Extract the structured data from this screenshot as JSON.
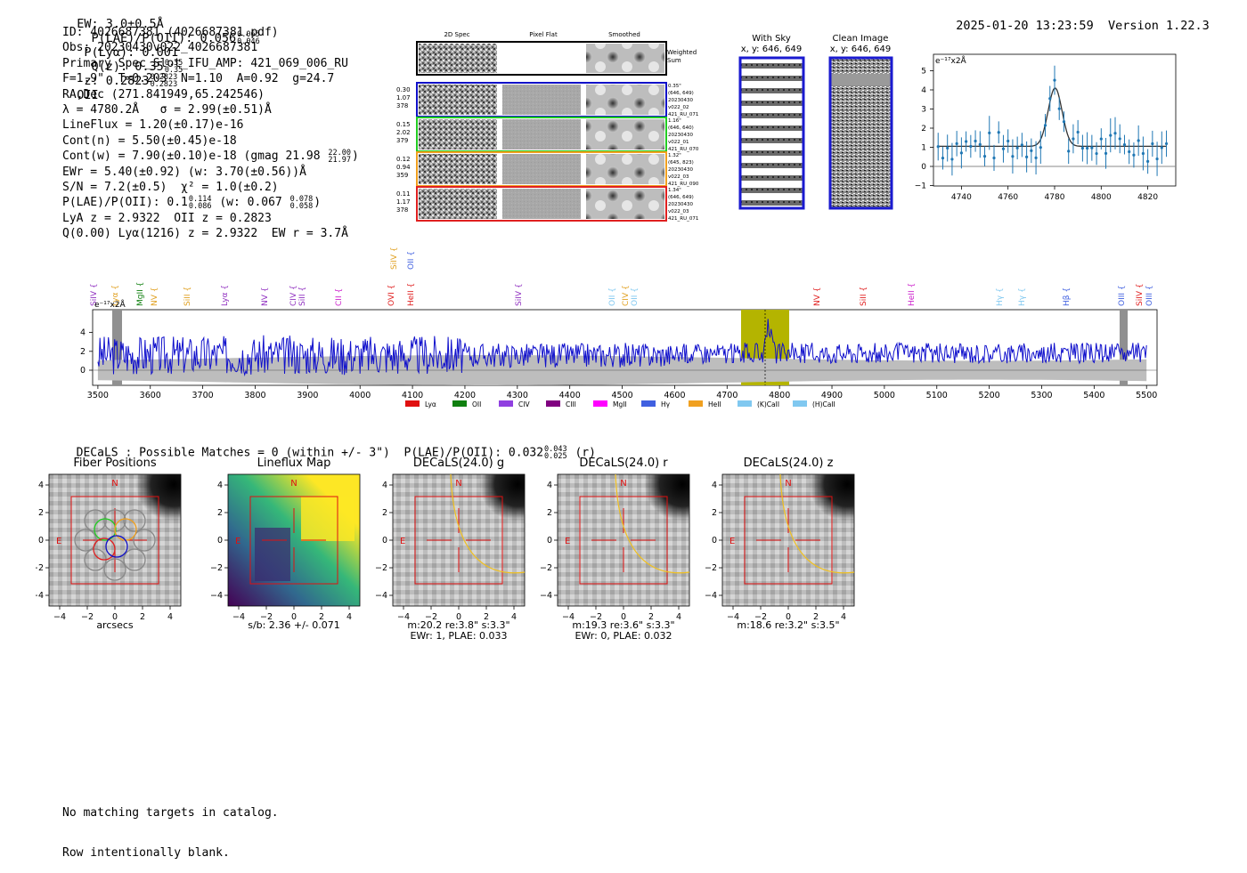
{
  "header": {
    "ew": "EW: 3.0±0.5Å",
    "plae_label": "P(LAE)/P(OII): 0.056",
    "plae_hi": "0.065",
    "plae_lo": "0.046",
    "plya": "P(Lyα): 0.001",
    "qz_label": "Q(z): 0.35",
    "qz_hi": "0.35",
    "qz_lo": "0.35",
    "z_label": "z: 0.2823",
    "z_hi": "0.2823",
    "z_lo": "0.2823",
    "z_line": "OII",
    "timestamp": "2025-01-20 13:23:59",
    "version": "Version 1.22.3"
  },
  "info": {
    "id": "ID: 4026687381 (4026687381.pdf)",
    "obs": "Obs: 20230430v022_4026687381",
    "primary": "Primary Spec_Slot_IFU_AMP: 421_069_006_RU",
    "fparams": "F=1.9\"  T=0.203  N=1.10  A=0.92  g=24.7",
    "radec": "RA,Dec (271.841949,65.242546)",
    "lambda": "λ = 4780.2Å   σ = 2.99(±0.51)Å",
    "lineflux": "LineFlux = 1.20(±0.17)e-16",
    "contn": "Cont(n) = 5.50(±0.45)e-18",
    "contw": "Cont(w) = 7.90(±0.10)e-18 (gmag 21.98",
    "gmag_hi": "22.00",
    "gmag_lo": "21.97",
    "ewr": "EWr = 5.40(±0.92) (w: 3.70(±0.56))Å",
    "sn": "S/N = 7.2(±0.5)  χ² = 1.0(±0.2)",
    "plae": "P(LAE)/P(OII): 0.1",
    "plae_hi": "0.114",
    "plae_lo": "0.086",
    "plae_w": "(w: 0.067",
    "plae_w_hi": "0.078",
    "plae_w_lo": "0.058",
    "lya_z": "LyA z = 2.9322  OII z = 0.2823",
    "q": "Q(0.00) Lyα(1216) z = 2.9322  EW r = 3.7Å"
  },
  "cutouts": {
    "col_2d": "2D Spec",
    "col_flat": "Pixel Flat",
    "col_smooth": "Smoothed",
    "weighted_sum": "Weighted\nSum",
    "rows": [
      {
        "left": [
          "0.30",
          "1.07",
          "378"
        ],
        "right": [
          "0.35\"",
          "(646, 649)",
          "20230430",
          "v022_02",
          "421_RU_071"
        ],
        "color": "#1010c8"
      },
      {
        "left": [
          "0.15",
          "2.02",
          "379"
        ],
        "right": [
          "1.16\"",
          "(646, 640)",
          "20230430",
          "v022_01",
          "421_RU_070"
        ],
        "color": "#22cc22"
      },
      {
        "left": [
          "0.12",
          "0.94",
          "359"
        ],
        "right": [
          "1.32\"",
          "(645, 823)",
          "20230430",
          "v022_03",
          "421_RU_090"
        ],
        "color": "#f0a020"
      },
      {
        "left": [
          "0.11",
          "1.17",
          "378"
        ],
        "right": [
          "1.34\"",
          "(646, 649)",
          "20230430",
          "v022_03",
          "421_RU_071"
        ],
        "color": "#e02020"
      }
    ]
  },
  "sky": {
    "with_sky_title": "With Sky",
    "with_sky_xy": "x, y: 646, 649",
    "clean_title": "Clean Image",
    "clean_xy": "x, y: 646, 649"
  },
  "zoom_plot": {
    "unit_label": "e⁻¹⁷x2Å",
    "x_ticks": [
      "4740",
      "4760",
      "4780",
      "4800",
      "4820"
    ],
    "y_ticks": [
      "5",
      "4",
      "3",
      "2",
      "1",
      "0",
      "−1"
    ]
  },
  "spectrum": {
    "unit_label": "e⁻¹⁷x2Å",
    "x_ticks": [
      "3500",
      "3600",
      "3700",
      "3800",
      "3900",
      "4000",
      "4100",
      "4200",
      "4300",
      "4400",
      "4500",
      "4600",
      "4700",
      "4800",
      "4900",
      "5000",
      "5100",
      "5200",
      "5300",
      "5400",
      "5500"
    ],
    "y_ticks": [
      "4",
      "2",
      "0"
    ],
    "line_labels": [
      {
        "t": "SiIV",
        "c": "#9030c0"
      },
      {
        "t": "Lyα",
        "c": "#e0a020"
      },
      {
        "t": "MgII",
        "c": "#108010"
      },
      {
        "t": "NV",
        "c": "#e0a020"
      },
      {
        "t": "SiII",
        "c": "#e0a020"
      },
      {
        "t": "Lyα",
        "c": "#9030c0"
      },
      {
        "t": "NV",
        "c": "#9030c0"
      },
      {
        "t": "CIV",
        "c": "#9030c0"
      },
      {
        "t": "SiII",
        "c": "#9030c0"
      },
      {
        "t": "CII",
        "c": "#cc20cc"
      },
      {
        "t": "OVI",
        "c": "#e02020"
      },
      {
        "t": "HeII",
        "c": "#e02020"
      },
      {
        "t": "SiIV",
        "c": "#e0a020"
      },
      {
        "t": "OII",
        "c": "#4060e0"
      },
      {
        "t": "SiIV",
        "c": "#9030c0"
      },
      {
        "t": "OII",
        "c": "#80c8f0"
      },
      {
        "t": "CIV",
        "c": "#e0a020"
      },
      {
        "t": "OII",
        "c": "#80c8f0"
      },
      {
        "t": "NV",
        "c": "#e02020"
      },
      {
        "t": "SiII",
        "c": "#e02020"
      },
      {
        "t": "HeII",
        "c": "#cc20cc"
      },
      {
        "t": "Hγ",
        "c": "#80c8f0"
      },
      {
        "t": "Hγ",
        "c": "#80c8f0"
      },
      {
        "t": "Hβ",
        "c": "#4060e0"
      },
      {
        "t": "OIII",
        "c": "#4060e0"
      },
      {
        "t": "SiIV",
        "c": "#e02020"
      },
      {
        "t": "OIII",
        "c": "#4060e0"
      }
    ],
    "legend": [
      {
        "t": "Lyα",
        "c": "#e01010"
      },
      {
        "t": "OII",
        "c": "#108010"
      },
      {
        "t": "CIV",
        "c": "#9040e0"
      },
      {
        "t": "CIII",
        "c": "#800080"
      },
      {
        "t": "MgII",
        "c": "#ff00ff"
      },
      {
        "t": "Hγ",
        "c": "#4060e0"
      },
      {
        "t": "HeII",
        "c": "#f0a020"
      },
      {
        "t": "(K)CaII",
        "c": "#80c8f0"
      },
      {
        "t": "(H)CaII",
        "c": "#80c8f0"
      }
    ]
  },
  "decals": {
    "summary": "DECaLS : Possible Matches = 0 (within +/- 3\")  P(LAE)/P(OII): 0.032",
    "summary_hi": "0.043",
    "summary_lo": "0.025",
    "summary_band": "(r)",
    "panels": [
      {
        "title": "Fiber Positions",
        "lbl1": "arcsecs",
        "lbl2": ""
      },
      {
        "title": "Lineflux Map",
        "lbl1": "s/b: 2.36 +/- 0.071",
        "lbl2": ""
      },
      {
        "title": "DECaLS(24.0) g",
        "lbl1": "m:20.2  re:3.8\"  s:3.3\"",
        "lbl2": "EWr: 1, PLAE: 0.033"
      },
      {
        "title": "DECaLS(24.0) r",
        "lbl1": "m:19.3  re:3.6\"  s:3.3\"",
        "lbl2": "EWr: 0, PLAE: 0.032"
      },
      {
        "title": "DECaLS(24.0) z",
        "lbl1": "m:18.6  re:3.2\"  s:3.5\"",
        "lbl2": ""
      }
    ],
    "axis_ticks": [
      "4",
      "2",
      "0",
      "−2",
      "−4"
    ],
    "x_ticks": [
      "−4",
      "−2",
      "0",
      "2",
      "4"
    ],
    "north": "N",
    "east": "E"
  },
  "footer": {
    "line1": "No matching targets in catalog.",
    "line2": "Row intentionally blank."
  }
}
